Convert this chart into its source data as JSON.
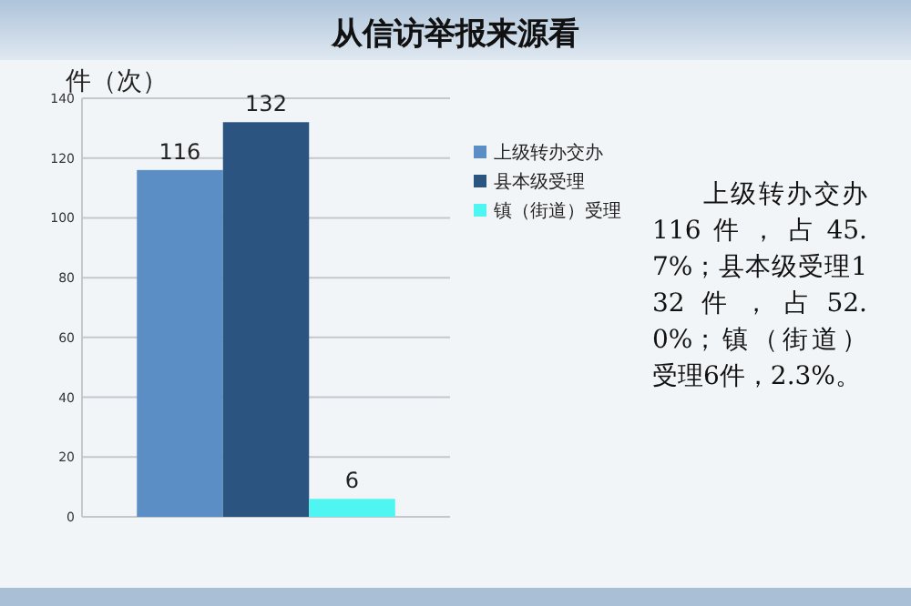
{
  "chart_data": {
    "type": "bar",
    "title": "从信访举报来源看",
    "ylabel": "件（次）",
    "categories": [
      null
    ],
    "series": [
      {
        "name": "上级转办交办",
        "color": "#5b8ec4",
        "values": [
          116
        ]
      },
      {
        "name": "县本级受理",
        "color": "#2b5580",
        "values": [
          132
        ]
      },
      {
        "name": "镇（街道）受理",
        "color": "#4ff5f0",
        "values": [
          6
        ]
      }
    ],
    "ylim": [
      0,
      140
    ],
    "yticks": [
      0,
      20,
      40,
      60,
      80,
      100,
      120,
      140
    ],
    "grid": "y",
    "legend": "right",
    "data_labels": true,
    "annotations": [
      "上级转办交办116件，占45.7%；县本级受理132件，占52.0%；镇（街道）受理6件，2.3%。"
    ]
  }
}
